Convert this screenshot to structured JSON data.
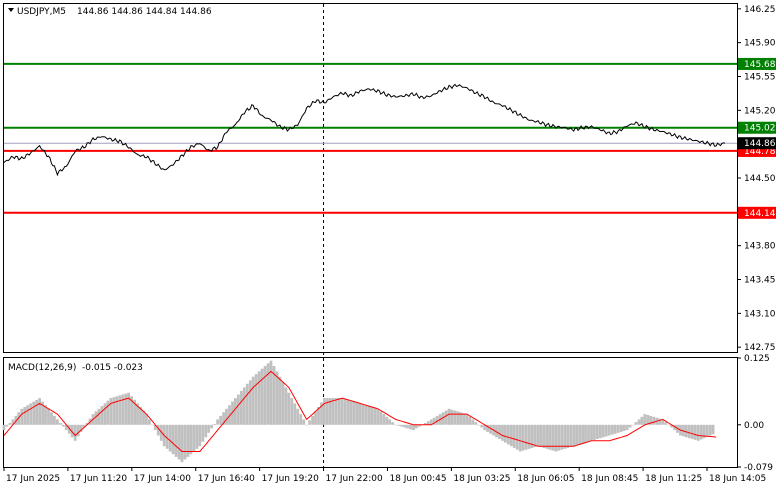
{
  "header": {
    "symbol": "USDJPY,M5",
    "ohlc": "144.86 144.86 144.84 144.86"
  },
  "macd_header": {
    "label": "MACD(12,26,9)",
    "values": "-0.015 -0.023"
  },
  "colors": {
    "support": "#ff0000",
    "resistance": "#008000",
    "price_line": "#000000",
    "histogram": "#c0c0c0",
    "signal": "#ff0000",
    "current_price_label": "#000000"
  },
  "chart_data": [
    {
      "type": "line",
      "symbol": "USDJPY",
      "timeframe": "M5",
      "ylim": [
        142.7,
        146.3
      ],
      "y_ticks": [
        "146.25",
        "145.90",
        "145.55",
        "145.20",
        "144.85",
        "144.50",
        "144.15",
        "143.80",
        "143.45",
        "143.10",
        "142.75"
      ],
      "x_ticks": [
        "17 Jun 2025",
        "17 Jun 11:20",
        "17 Jun 14:00",
        "17 Jun 16:40",
        "17 Jun 19:20",
        "17 Jun 22:00",
        "18 Jun 00:45",
        "18 Jun 03:25",
        "18 Jun 06:05",
        "18 Jun 08:45",
        "18 Jun 11:25",
        "18 Jun 14:05"
      ],
      "vline_time": "17 Jun 22:00",
      "levels": [
        {
          "label": "145.68",
          "value": 145.68,
          "color": "#008000"
        },
        {
          "label": "145.02",
          "value": 145.02,
          "color": "#008000"
        },
        {
          "label": "144.78",
          "value": 144.78,
          "color": "#ff0000"
        },
        {
          "label": "144.14",
          "value": 144.14,
          "color": "#ff0000"
        }
      ],
      "current_price": {
        "label": "144.86",
        "value": 144.86
      },
      "price_series": [
        [
          0,
          144.66
        ],
        [
          0.5,
          144.72
        ],
        [
          1,
          144.7
        ],
        [
          1.5,
          144.76
        ],
        [
          2,
          144.83
        ],
        [
          2.5,
          144.72
        ],
        [
          3,
          144.55
        ],
        [
          3.5,
          144.62
        ],
        [
          4,
          144.78
        ],
        [
          4.5,
          144.82
        ],
        [
          5,
          144.9
        ],
        [
          5.5,
          144.93
        ],
        [
          6,
          144.9
        ],
        [
          6.5,
          144.88
        ],
        [
          7,
          144.82
        ],
        [
          7.5,
          144.74
        ],
        [
          8,
          144.72
        ],
        [
          8.5,
          144.65
        ],
        [
          9,
          144.58
        ],
        [
          9.5,
          144.64
        ],
        [
          10,
          144.73
        ],
        [
          10.5,
          144.82
        ],
        [
          11,
          144.86
        ],
        [
          11.5,
          144.78
        ],
        [
          12,
          144.82
        ],
        [
          12.5,
          144.98
        ],
        [
          13,
          145.05
        ],
        [
          13.5,
          145.18
        ],
        [
          14,
          145.25
        ],
        [
          14.5,
          145.14
        ],
        [
          15,
          145.1
        ],
        [
          15.5,
          145.03
        ],
        [
          16,
          145.0
        ],
        [
          16.5,
          145.05
        ],
        [
          17,
          145.22
        ],
        [
          17.5,
          145.3
        ],
        [
          18,
          145.28
        ],
        [
          18.5,
          145.34
        ],
        [
          19,
          145.38
        ],
        [
          19.5,
          145.35
        ],
        [
          20,
          145.4
        ],
        [
          20.5,
          145.42
        ],
        [
          21,
          145.4
        ],
        [
          21.5,
          145.36
        ],
        [
          22,
          145.34
        ],
        [
          22.5,
          145.35
        ],
        [
          23,
          145.37
        ],
        [
          23.5,
          145.33
        ],
        [
          24,
          145.35
        ],
        [
          24.5,
          145.4
        ],
        [
          25,
          145.44
        ],
        [
          25.5,
          145.46
        ],
        [
          26,
          145.43
        ],
        [
          26.5,
          145.38
        ],
        [
          27,
          145.34
        ],
        [
          27.5,
          145.28
        ],
        [
          28,
          145.25
        ],
        [
          28.5,
          145.2
        ],
        [
          29,
          145.15
        ],
        [
          29.5,
          145.1
        ],
        [
          30,
          145.08
        ],
        [
          30.5,
          145.05
        ],
        [
          31,
          145.03
        ],
        [
          31.5,
          145.02
        ],
        [
          32,
          145.0
        ],
        [
          32.5,
          145.02
        ],
        [
          33,
          145.03
        ],
        [
          33.5,
          145.0
        ],
        [
          34,
          144.96
        ],
        [
          34.5,
          144.98
        ],
        [
          35,
          145.04
        ],
        [
          35.5,
          145.07
        ],
        [
          36,
          145.03
        ],
        [
          36.5,
          145.0
        ],
        [
          37,
          144.98
        ],
        [
          37.5,
          144.95
        ],
        [
          38,
          144.92
        ],
        [
          38.5,
          144.9
        ],
        [
          39,
          144.88
        ],
        [
          39.5,
          144.86
        ],
        [
          40,
          144.84
        ],
        [
          40.5,
          144.86
        ]
      ]
    },
    {
      "type": "bar",
      "title": "MACD(12,26,9)",
      "ylim": [
        -0.079,
        0.125
      ],
      "y_ticks": [
        "0.125",
        "0.00",
        "-0.079"
      ],
      "macd_histogram": [
        [
          0,
          -0.01
        ],
        [
          1,
          0.03
        ],
        [
          2,
          0.05
        ],
        [
          3,
          0.01
        ],
        [
          4,
          -0.03
        ],
        [
          5,
          0.02
        ],
        [
          6,
          0.05
        ],
        [
          7,
          0.06
        ],
        [
          8,
          0.02
        ],
        [
          9,
          -0.04
        ],
        [
          10,
          -0.07
        ],
        [
          11,
          -0.04
        ],
        [
          12,
          0.01
        ],
        [
          13,
          0.05
        ],
        [
          14,
          0.09
        ],
        [
          15,
          0.12
        ],
        [
          16,
          0.06
        ],
        [
          17,
          0.0
        ],
        [
          18,
          0.05
        ],
        [
          19,
          0.05
        ],
        [
          20,
          0.04
        ],
        [
          21,
          0.03
        ],
        [
          22,
          0.0
        ],
        [
          23,
          -0.01
        ],
        [
          24,
          0.01
        ],
        [
          25,
          0.03
        ],
        [
          26,
          0.02
        ],
        [
          27,
          -0.01
        ],
        [
          28,
          -0.03
        ],
        [
          29,
          -0.05
        ],
        [
          30,
          -0.04
        ],
        [
          31,
          -0.05
        ],
        [
          32,
          -0.04
        ],
        [
          33,
          -0.03
        ],
        [
          34,
          -0.02
        ],
        [
          35,
          -0.01
        ],
        [
          36,
          0.02
        ],
        [
          37,
          0.01
        ],
        [
          38,
          -0.02
        ],
        [
          39,
          -0.03
        ],
        [
          40,
          -0.015
        ]
      ],
      "signal_series": [
        [
          0,
          -0.02
        ],
        [
          1,
          0.02
        ],
        [
          2,
          0.04
        ],
        [
          3,
          0.02
        ],
        [
          4,
          -0.02
        ],
        [
          5,
          0.01
        ],
        [
          6,
          0.04
        ],
        [
          7,
          0.05
        ],
        [
          8,
          0.02
        ],
        [
          9,
          -0.02
        ],
        [
          10,
          -0.05
        ],
        [
          11,
          -0.05
        ],
        [
          12,
          -0.01
        ],
        [
          13,
          0.03
        ],
        [
          14,
          0.07
        ],
        [
          15,
          0.1
        ],
        [
          16,
          0.07
        ],
        [
          17,
          0.01
        ],
        [
          18,
          0.04
        ],
        [
          19,
          0.05
        ],
        [
          20,
          0.04
        ],
        [
          21,
          0.03
        ],
        [
          22,
          0.01
        ],
        [
          23,
          -0.0
        ],
        [
          24,
          0.0
        ],
        [
          25,
          0.02
        ],
        [
          26,
          0.02
        ],
        [
          27,
          0.0
        ],
        [
          28,
          -0.02
        ],
        [
          29,
          -0.03
        ],
        [
          30,
          -0.04
        ],
        [
          31,
          -0.04
        ],
        [
          32,
          -0.04
        ],
        [
          33,
          -0.03
        ],
        [
          34,
          -0.03
        ],
        [
          35,
          -0.02
        ],
        [
          36,
          0.0
        ],
        [
          37,
          0.01
        ],
        [
          38,
          -0.01
        ],
        [
          39,
          -0.02
        ],
        [
          40,
          -0.023
        ]
      ]
    }
  ]
}
